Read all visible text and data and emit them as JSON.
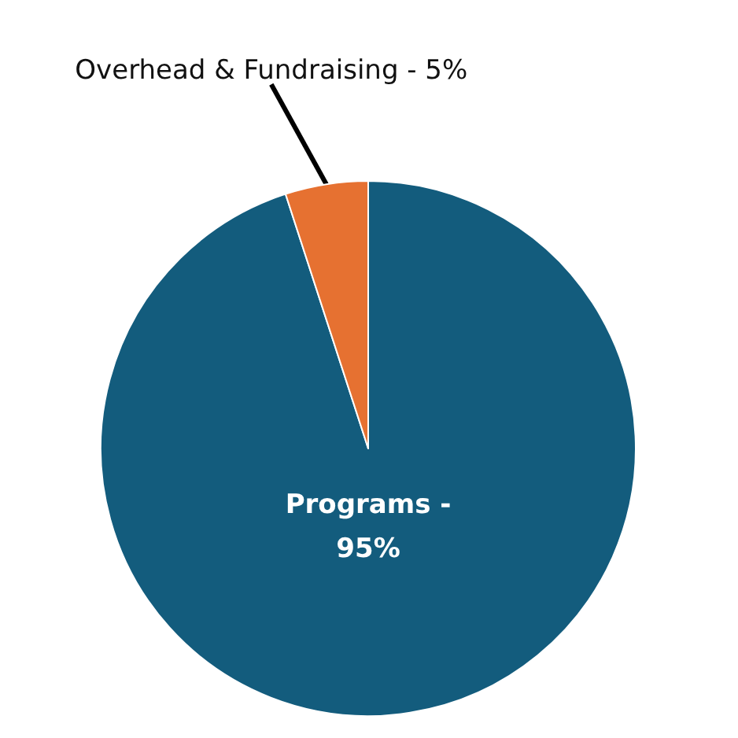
{
  "chart_data": {
    "type": "pie",
    "categories": [
      "Programs -",
      "Overhead & Fundraising -"
    ],
    "values": [
      95,
      5
    ],
    "value_labels": [
      "95%",
      "5%"
    ],
    "colors": [
      "#135c7d",
      "#e67131"
    ],
    "legend": false
  }
}
